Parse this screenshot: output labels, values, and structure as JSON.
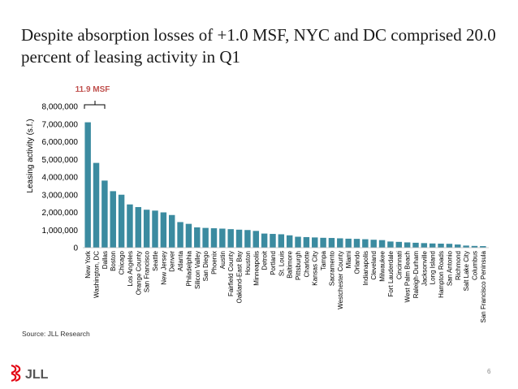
{
  "slide": {
    "title": "Despite absorption losses of +1.0 MSF, NYC and DC comprised 20.0 percent of leasing activity in Q1",
    "source": "Source: JLL Research",
    "logo_text": "JLL",
    "page_number": "6"
  },
  "colors": {
    "bar": "#3b8ba0",
    "annotation": "#c0504d",
    "logo_red": "#e30613"
  },
  "chart_data": {
    "type": "bar",
    "title": "",
    "xlabel": "",
    "ylabel": "Leasing activity (s.f.)",
    "ylim": [
      0,
      8000000
    ],
    "yticks": [
      0,
      1000000,
      2000000,
      3000000,
      4000000,
      5000000,
      6000000,
      7000000,
      8000000
    ],
    "ytick_labels": [
      "0",
      "1,000,000",
      "2,000,000",
      "3,000,000",
      "4,000,000",
      "5,000,000",
      "6,000,000",
      "7,000,000",
      "8,000,000"
    ],
    "annotation": "11.9 MSF",
    "categories": [
      "New York",
      "Washington, DC",
      "Dallas",
      "Boston",
      "Chicago",
      "Los Angeles",
      "Orange County",
      "San Francisco",
      "Seattle",
      "New Jersey",
      "Denver",
      "Atlanta",
      "Philadelphia",
      "Silicon Valley",
      "San Diego",
      "Phoenix",
      "Austin",
      "Fairfield County",
      "Oakland-East Bay",
      "Houston",
      "Minneapolis",
      "Detroit",
      "Portland",
      "St. Louis",
      "Baltimore",
      "Pittsburgh",
      "Charlotte",
      "Kansas City",
      "Tampa",
      "Sacramento",
      "Westchester County",
      "Miami",
      "Orlando",
      "Indianapolis",
      "Cleveland",
      "Milwaukee",
      "Fort Lauderdale",
      "Cincinnati",
      "West Palm Beach",
      "Raleigh-Durham",
      "Jacksonville",
      "Long Island",
      "Hampton Roads",
      "San Antonio",
      "Richmond",
      "Salt Lake City",
      "Columbus",
      "San Francisco Peninsula"
    ],
    "values": [
      7100000,
      4800000,
      3800000,
      3200000,
      3000000,
      2450000,
      2300000,
      2150000,
      2100000,
      2000000,
      1850000,
      1450000,
      1350000,
      1150000,
      1120000,
      1100000,
      1080000,
      1050000,
      1020000,
      1000000,
      950000,
      800000,
      780000,
      760000,
      700000,
      620000,
      600000,
      580000,
      560000,
      550000,
      530000,
      510000,
      500000,
      480000,
      450000,
      430000,
      350000,
      330000,
      300000,
      280000,
      260000,
      240000,
      230000,
      220000,
      180000,
      120000,
      100000,
      90000
    ]
  }
}
